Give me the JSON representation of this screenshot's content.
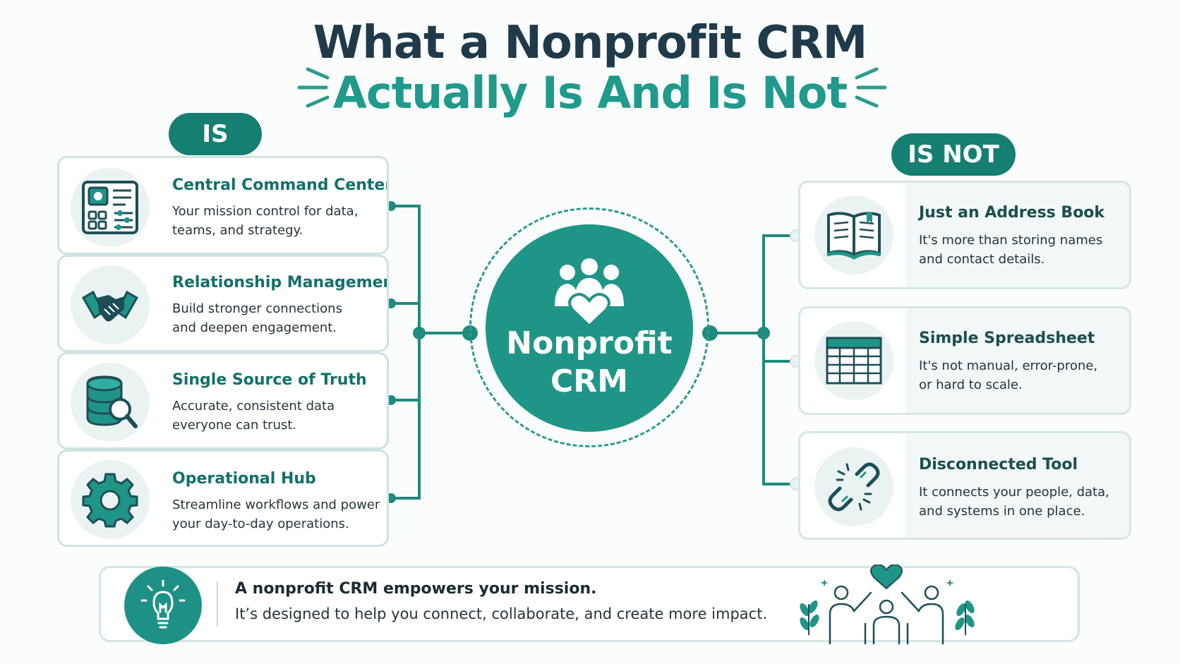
{
  "title": {
    "line1": "What a Nonprofit CRM",
    "line2": "Actually Is And Is Not"
  },
  "is_label": "IS",
  "is_not_label": "IS NOT",
  "center": {
    "line1": "Nonprofit",
    "line2": "CRM",
    "icon": "people-heart-icon"
  },
  "is_items": [
    {
      "title": "Central Command Center",
      "desc1": "Your mission control for data,",
      "desc2": "teams, and strategy.",
      "icon": "dashboard-icon"
    },
    {
      "title": "Relationship Management",
      "desc1": "Build stronger connections",
      "desc2": "and deepen engagement.",
      "icon": "handshake-icon"
    },
    {
      "title": "Single Source of Truth",
      "desc1": "Accurate, consistent data",
      "desc2": "everyone can trust.",
      "icon": "database-search-icon"
    },
    {
      "title": "Operational Hub",
      "desc1": "Streamline workflows and power",
      "desc2": "your day-to-day operations.",
      "icon": "gear-icon"
    }
  ],
  "is_not_items": [
    {
      "title": "Just an Address Book",
      "desc1": "It's more than storing names",
      "desc2": "and contact details.",
      "icon": "book-icon"
    },
    {
      "title": "Simple Spreadsheet",
      "desc1": "It's not manual, error-prone,",
      "desc2": "or hard to scale.",
      "icon": "spreadsheet-icon"
    },
    {
      "title": "Disconnected Tool",
      "desc1": "It connects your people, data,",
      "desc2": "and systems in one place.",
      "icon": "broken-link-icon"
    }
  ],
  "footer": {
    "line1": "A nonprofit CRM empowers your mission.",
    "line2": "It’s designed to help you connect, collaborate, and create more impact.",
    "icon": "lightbulb-icon",
    "illustration": "community-heart-icon"
  },
  "colors": {
    "primary": "#1f9588",
    "dark_teal": "#157f72",
    "title_dark": "#1f3a4b"
  }
}
